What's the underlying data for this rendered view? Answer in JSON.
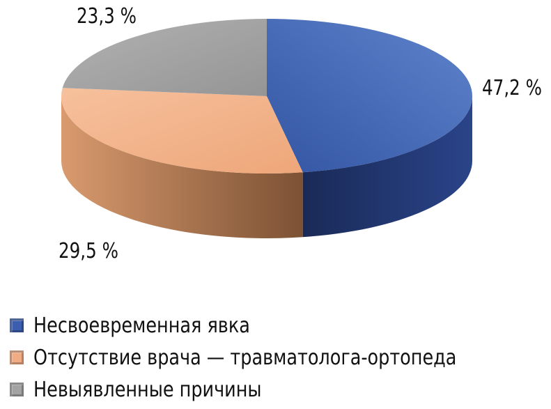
{
  "chart_data": {
    "type": "pie",
    "categories": [
      "Несвоевременная явка",
      "Отсутствие врача — травматолога-ортопеда",
      "Невыявленные причины"
    ],
    "values": [
      47.2,
      29.5,
      23.3
    ],
    "labels": [
      "47,2 %",
      "29,5 %",
      "23,3 %"
    ],
    "colors": [
      "#3b5fae",
      "#f0ad84",
      "#a3a3a3"
    ],
    "legend_placement": "bottom-left"
  }
}
